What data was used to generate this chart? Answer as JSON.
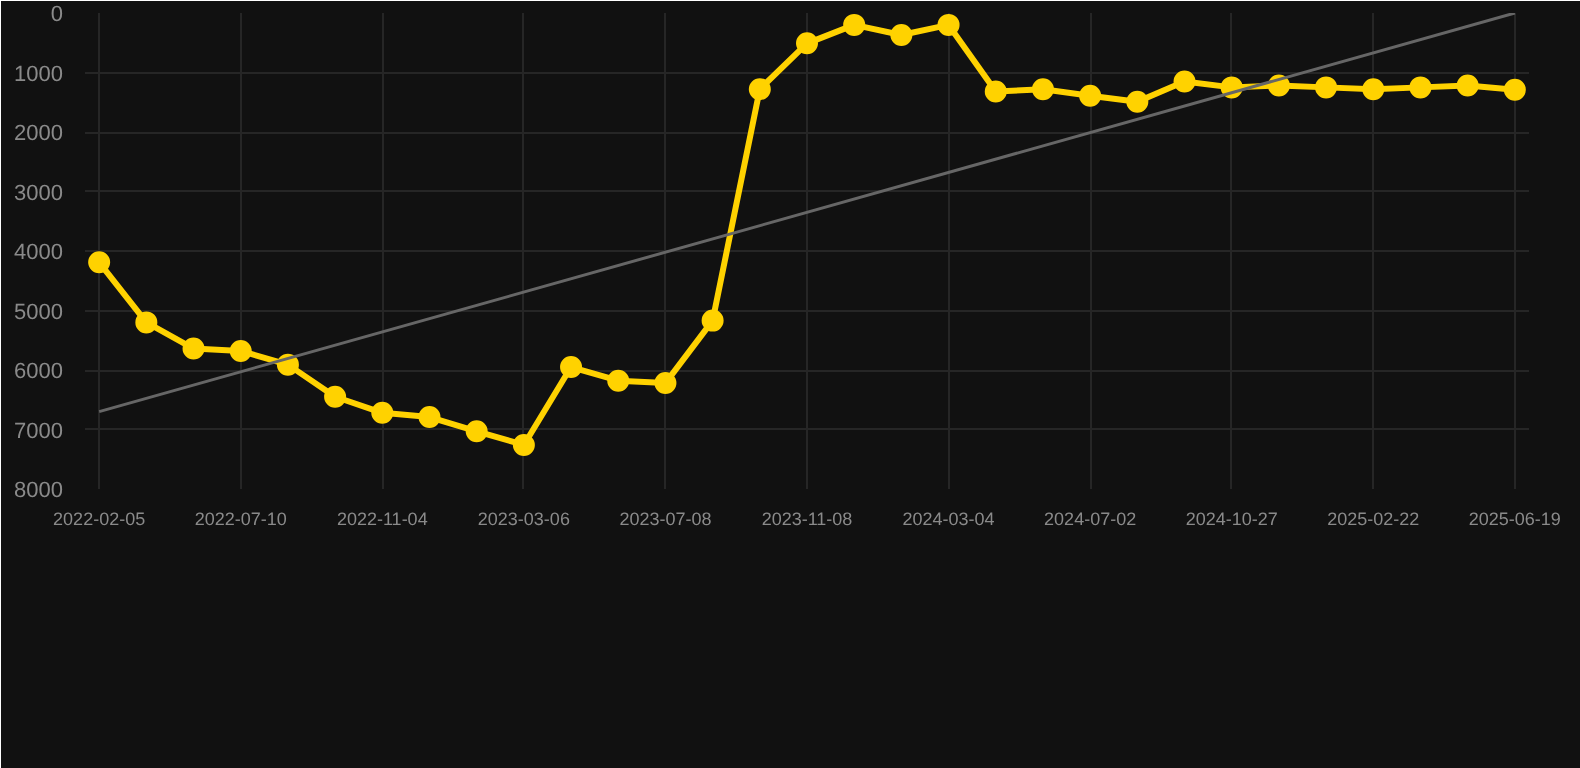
{
  "chart_data": {
    "type": "line",
    "categories": [
      "2022-02-05",
      null,
      null,
      "2022-07-10",
      null,
      null,
      "2022-11-04",
      null,
      null,
      "2023-03-06",
      null,
      null,
      "2023-07-08",
      null,
      null,
      "2023-11-08",
      null,
      null,
      "2024-03-04",
      null,
      null,
      "2024-07-02",
      null,
      null,
      "2024-10-27",
      null,
      null,
      "2025-02-22",
      null,
      null,
      "2025-06-19"
    ],
    "series": [
      {
        "color": "#ffd200",
        "marker": "circle",
        "values": [
          4190,
          5200,
          5640,
          5680,
          5910,
          6450,
          6720,
          6790,
          7030,
          7260,
          5950,
          6180,
          6220,
          5170,
          1280,
          510,
          200,
          370,
          200,
          1320,
          1280,
          1390,
          1490,
          1150,
          1250,
          1220,
          1250,
          1280,
          1250,
          1220,
          1290
        ]
      },
      {
        "type": "line",
        "color": "#666666",
        "marker": "none",
        "values": [
          6700,
          null,
          null,
          null,
          null,
          null,
          null,
          null,
          null,
          null,
          null,
          null,
          null,
          null,
          null,
          null,
          null,
          null,
          null,
          null,
          null,
          null,
          null,
          null,
          null,
          null,
          null,
          null,
          null,
          null,
          0
        ]
      }
    ],
    "ylim": [
      8000,
      0
    ],
    "yticks": [
      0,
      1000,
      2000,
      3000,
      4000,
      5000,
      6000,
      7000,
      8000
    ],
    "grid": true
  }
}
